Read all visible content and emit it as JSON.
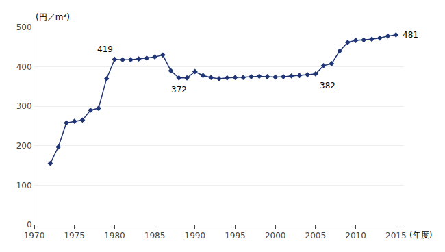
{
  "chart_data": {
    "type": "line",
    "x": [
      1972,
      1973,
      1974,
      1975,
      1976,
      1977,
      1978,
      1979,
      1980,
      1981,
      1982,
      1983,
      1984,
      1985,
      1986,
      1987,
      1988,
      1989,
      1990,
      1991,
      1992,
      1993,
      1994,
      1995,
      1996,
      1997,
      1998,
      1999,
      2000,
      2001,
      2002,
      2003,
      2004,
      2005,
      2006,
      2007,
      2008,
      2009,
      2010,
      2011,
      2012,
      2013,
      2014,
      2015
    ],
    "values": [
      155,
      197,
      258,
      262,
      265,
      290,
      295,
      370,
      419,
      418,
      418,
      420,
      422,
      425,
      430,
      390,
      372,
      372,
      388,
      378,
      373,
      370,
      372,
      373,
      373,
      375,
      376,
      375,
      374,
      375,
      377,
      378,
      380,
      382,
      403,
      408,
      440,
      462,
      467,
      468,
      470,
      473,
      478,
      481
    ],
    "color": "#1f3474",
    "marker": "diamond",
    "ylabel": "(円／m³)",
    "xlabel": "(年度)",
    "xlim": [
      1970,
      2016
    ],
    "ylim": [
      0,
      500
    ],
    "xticks": [
      1970,
      1975,
      1980,
      1985,
      1990,
      1995,
      2000,
      2005,
      2010,
      2015
    ],
    "yticks": [
      0,
      100,
      200,
      300,
      400,
      500
    ],
    "grid": "y",
    "annotations": [
      {
        "x": 1980,
        "y": 419,
        "text": "419"
      },
      {
        "x": 1988,
        "y": 372,
        "text": "372"
      },
      {
        "x": 2005,
        "y": 382,
        "text": "382"
      },
      {
        "x": 2015,
        "y": 481,
        "text": "481"
      }
    ]
  }
}
